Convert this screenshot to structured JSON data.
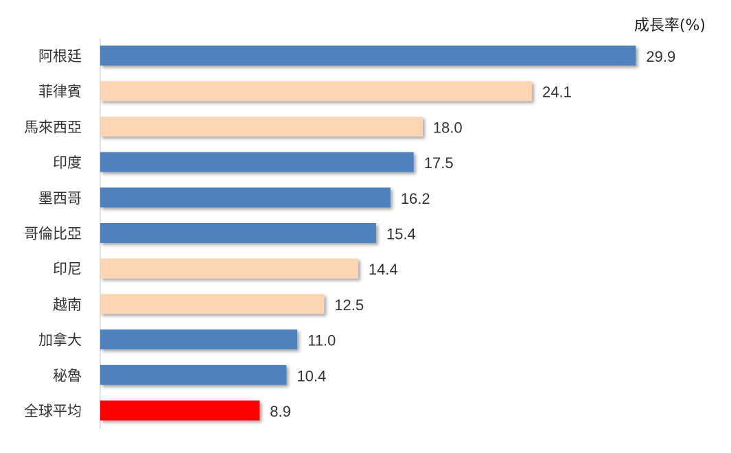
{
  "chart_data": {
    "type": "bar",
    "orientation": "horizontal",
    "unit_label": "成長率(%)",
    "categories": [
      "阿根廷",
      "菲律賓",
      "馬來西亞",
      "印度",
      "墨西哥",
      "哥倫比亞",
      "印尼",
      "越南",
      "加拿大",
      "秘魯",
      "全球平均"
    ],
    "values": [
      29.9,
      24.1,
      18.0,
      17.5,
      16.2,
      15.4,
      14.4,
      12.5,
      11.0,
      10.4,
      8.9
    ],
    "value_labels": [
      "29.9",
      "24.1",
      "18.0",
      "17.5",
      "16.2",
      "15.4",
      "14.4",
      "12.5",
      "11.0",
      "10.4",
      "8.9"
    ],
    "bar_colors": [
      "#4F81BD",
      "#FCD5B5",
      "#FCD5B5",
      "#4F81BD",
      "#4F81BD",
      "#4F81BD",
      "#FCD5B5",
      "#FCD5B5",
      "#4F81BD",
      "#4F81BD",
      "#FF0000"
    ],
    "xlim": [
      0,
      30
    ],
    "grid": false,
    "legend": "none"
  }
}
